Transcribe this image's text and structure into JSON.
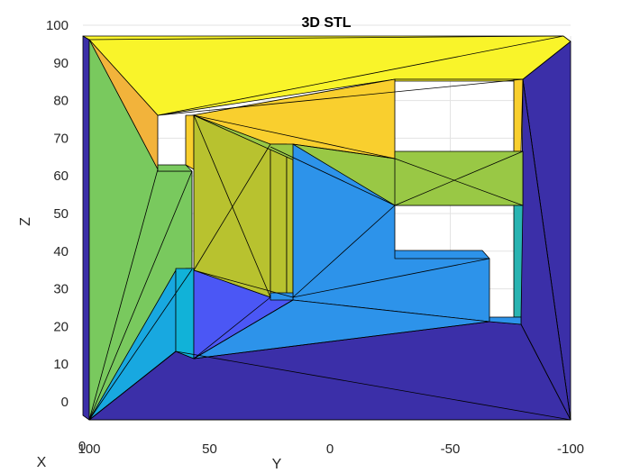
{
  "chart_data": {
    "type": "3d-surface",
    "title": "3D STL",
    "xlabel": "X",
    "ylabel": "Y",
    "zlabel": "Z",
    "x_ticks": [
      "0"
    ],
    "y_ticks": [
      "100",
      "50",
      "0",
      "-50",
      "-100"
    ],
    "z_ticks": [
      "0",
      "10",
      "20",
      "30",
      "40",
      "50",
      "60",
      "70",
      "80",
      "90",
      "100"
    ],
    "ylim": [
      -100,
      100
    ],
    "zlim": [
      -5,
      100
    ],
    "grid": true,
    "view": "side view along X (Y horizontal, reversed; Z vertical)",
    "facet_colors": {
      "yellow": "#f9f42a",
      "gold": "#f9cf2e",
      "orange_gold": "#f2b33b",
      "olive": "#b8c22f",
      "yellow_green": "#99c845",
      "green": "#79c95e",
      "sky_blue": "#2d93ea",
      "light_blue": "#18a8e0",
      "cyan_blue": "#11b2d8",
      "blue_violet": "#4b57f5",
      "dark_indigo": "#3b2fa8",
      "teal": "#29b4b2",
      "edge": "#000000"
    }
  }
}
